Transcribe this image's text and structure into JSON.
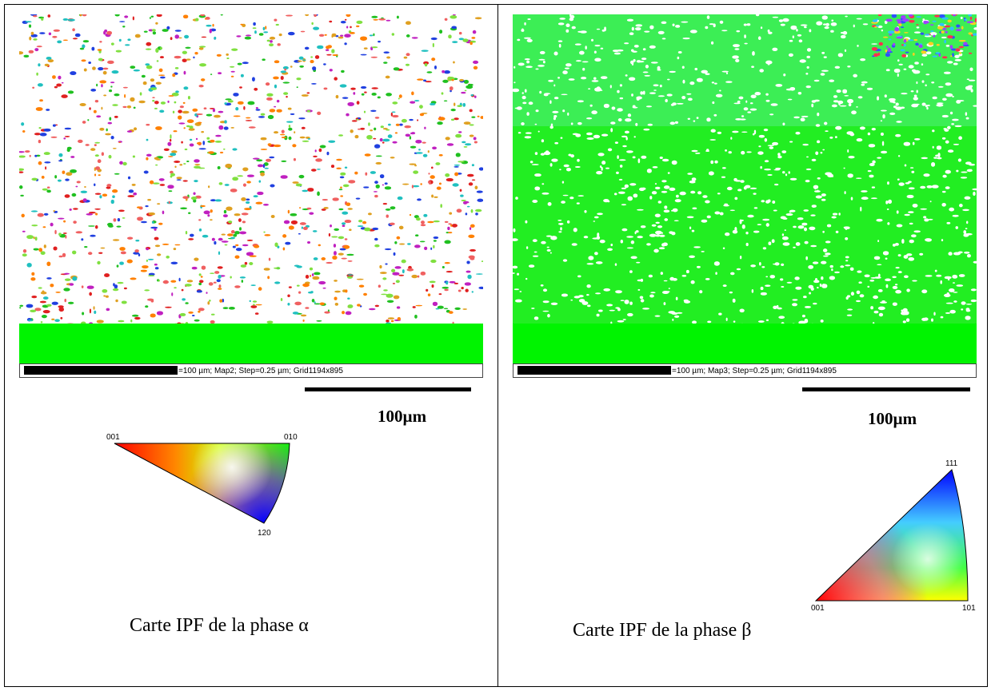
{
  "panels": [
    {
      "map_legend": "=100 µm; Map2; Step=0.25 µm; Grid1194x895",
      "scale_label": "100µm",
      "triangle_labels": [
        "001",
        "010",
        "120"
      ],
      "caption": "Carte IPF de la phase α"
    },
    {
      "map_legend": "=100 µm; Map3; Step=0.25 µm; Grid1194x895",
      "scale_label": "100µm",
      "triangle_labels": [
        "111",
        "001",
        "101"
      ],
      "caption": "Carte IPF de la phase β"
    }
  ]
}
